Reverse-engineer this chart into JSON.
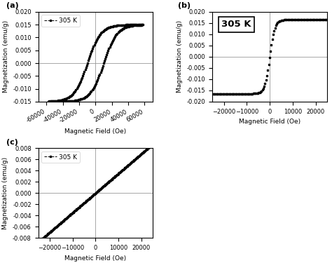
{
  "panel_a": {
    "label": "(a)",
    "legend": "305 K",
    "xlim": [
      -70000,
      70000
    ],
    "ylim": [
      -0.015,
      0.02
    ],
    "yticks": [
      -0.015,
      -0.01,
      -0.005,
      0.0,
      0.005,
      0.01,
      0.015,
      0.02
    ],
    "xticks": [
      -60000,
      -40000,
      -20000,
      0,
      20000,
      40000,
      60000
    ],
    "xlabel": "Magnetic Field (Oe)",
    "ylabel": "Magnetization (emu/g)",
    "hsat": 58000,
    "msat": 0.015,
    "hc": 10000,
    "mr": 0.004,
    "shape_factor_up": 0.28,
    "shape_factor_dn": 0.28
  },
  "panel_b": {
    "label": "(b)",
    "legend": "305 K",
    "xlim": [
      -25000,
      25000
    ],
    "ylim": [
      -0.02,
      0.02
    ],
    "yticks": [
      -0.02,
      -0.015,
      -0.01,
      -0.005,
      0.0,
      0.005,
      0.01,
      0.015,
      0.02
    ],
    "xticks": [
      -20000,
      -10000,
      0,
      10000,
      20000
    ],
    "xlabel": "Magnetic Field (Oe)",
    "ylabel": "Magnetization (emu/g)",
    "hsat": 22000,
    "msat": 0.0165,
    "shape_factor": 0.1
  },
  "panel_c": {
    "label": "(c)",
    "legend": "305 K",
    "xlim": [
      -25000,
      25000
    ],
    "ylim": [
      -0.008,
      0.008
    ],
    "yticks": [
      -0.008,
      -0.006,
      -0.004,
      -0.002,
      0.0,
      0.002,
      0.004,
      0.006,
      0.008
    ],
    "xticks": [
      -20000,
      -10000,
      0,
      10000,
      20000
    ],
    "xlabel": "Magnetic Field (Oe)",
    "ylabel": "Magnetization (emu/g)",
    "slope": 3.5e-07
  },
  "marker": "s",
  "markersize": 1.5,
  "color": "black",
  "background": "white",
  "axline_color": "#999999",
  "axline_lw": 0.6,
  "tick_fontsize": 6,
  "label_fontsize": 6.5,
  "legend_fontsize": 6.5
}
